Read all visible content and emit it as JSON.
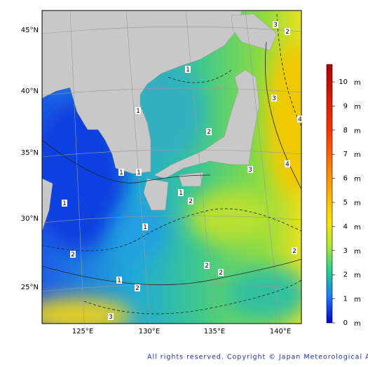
{
  "map": {
    "latitude_labels": [
      "45°N",
      "40°N",
      "35°N",
      "30°N",
      "25°N"
    ],
    "longitude_labels": [
      "125°E",
      "130°E",
      "135°E",
      "140°E"
    ],
    "colorbar": {
      "ticks": [
        0,
        1,
        2,
        3,
        4,
        5,
        6,
        7,
        8,
        9,
        10
      ],
      "unit": "m"
    },
    "contour_labels": [
      "1",
      "1",
      "1",
      "1",
      "1",
      "1",
      "1",
      "1",
      "2",
      "2",
      "2",
      "2",
      "2",
      "2",
      "2",
      "2",
      "3",
      "3",
      "3",
      "3",
      "4",
      "4"
    ],
    "copyright": "All rights reserved. Copyright © Japan Meteorological Agency"
  }
}
